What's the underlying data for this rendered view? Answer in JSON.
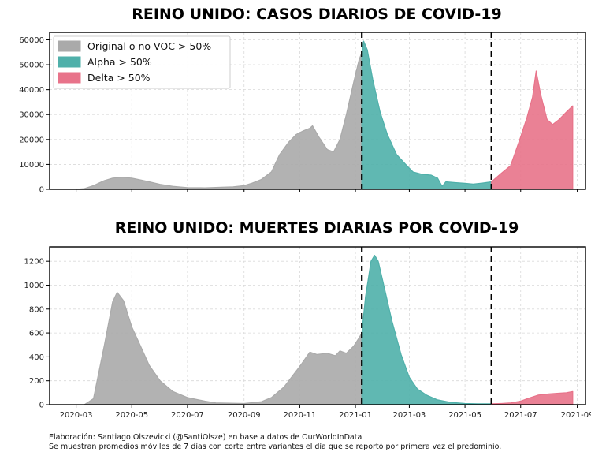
{
  "colors": {
    "original": "#aaaaaa",
    "alpha": "#4fb0aa",
    "delta": "#e8738a",
    "grid": "#d9d9d9",
    "divider": "#000000"
  },
  "footer": {
    "line1": "Elaboración: Santiago Olszevicki (@SantiOlsze) en base a datos de OurWorldInData",
    "line2": "Se muestran promedios móviles de 7 días con corte entre variantes el día que se reportó por primera vez el predominio."
  },
  "chart_data": [
    {
      "type": "area",
      "title": "REINO UNIDO: CASOS DIARIOS DE COVID-19",
      "xlabel": "",
      "ylabel": "",
      "xlim": [
        "2020-02-01",
        "2021-09-10"
      ],
      "ylim": [
        0,
        63000
      ],
      "yticks": [
        0,
        10000,
        20000,
        30000,
        40000,
        50000,
        60000
      ],
      "xticks": [],
      "grid": true,
      "legend_position": "top-left",
      "dividers": [
        "2021-01-08",
        "2021-05-30"
      ],
      "series": [
        {
          "name": "Original o no VOC > 50%",
          "color_key": "original",
          "points": [
            [
              "2020-03-01",
              0
            ],
            [
              "2020-03-10",
              300
            ],
            [
              "2020-03-20",
              1500
            ],
            [
              "2020-04-01",
              3500
            ],
            [
              "2020-04-10",
              4500
            ],
            [
              "2020-04-20",
              4800
            ],
            [
              "2020-05-01",
              4500
            ],
            [
              "2020-05-10",
              3800
            ],
            [
              "2020-05-20",
              3000
            ],
            [
              "2020-06-01",
              2000
            ],
            [
              "2020-06-15",
              1200
            ],
            [
              "2020-07-01",
              700
            ],
            [
              "2020-07-20",
              600
            ],
            [
              "2020-08-01",
              750
            ],
            [
              "2020-08-20",
              1000
            ],
            [
              "2020-09-01",
              1500
            ],
            [
              "2020-09-10",
              2500
            ],
            [
              "2020-09-20",
              4000
            ],
            [
              "2020-10-01",
              7000
            ],
            [
              "2020-10-10",
              14000
            ],
            [
              "2020-10-20",
              19000
            ],
            [
              "2020-10-28",
              22000
            ],
            [
              "2020-11-05",
              23500
            ],
            [
              "2020-11-12",
              24500
            ],
            [
              "2020-11-15",
              25500
            ],
            [
              "2020-11-22",
              21000
            ],
            [
              "2020-12-01",
              16000
            ],
            [
              "2020-12-08",
              15000
            ],
            [
              "2020-12-15",
              20000
            ],
            [
              "2020-12-22",
              30000
            ],
            [
              "2020-12-30",
              43000
            ],
            [
              "2021-01-05",
              52000
            ],
            [
              "2021-01-08",
              55000
            ]
          ]
        },
        {
          "name": "Alpha > 50%",
          "color_key": "alpha",
          "points": [
            [
              "2021-01-08",
              55000
            ],
            [
              "2021-01-10",
              59500
            ],
            [
              "2021-01-14",
              56000
            ],
            [
              "2021-01-20",
              44000
            ],
            [
              "2021-01-28",
              31000
            ],
            [
              "2021-02-05",
              22000
            ],
            [
              "2021-02-15",
              14000
            ],
            [
              "2021-02-25",
              10000
            ],
            [
              "2021-03-05",
              7000
            ],
            [
              "2021-03-15",
              6000
            ],
            [
              "2021-03-25",
              5700
            ],
            [
              "2021-04-01",
              4500
            ],
            [
              "2021-04-06",
              1200
            ],
            [
              "2021-04-10",
              3000
            ],
            [
              "2021-04-20",
              2700
            ],
            [
              "2021-05-01",
              2400
            ],
            [
              "2021-05-10",
              2100
            ],
            [
              "2021-05-20",
              2500
            ],
            [
              "2021-05-30",
              3000
            ]
          ]
        },
        {
          "name": "Delta > 50%",
          "color_key": "delta",
          "points": [
            [
              "2021-05-30",
              3000
            ],
            [
              "2021-06-10",
              6500
            ],
            [
              "2021-06-20",
              9500
            ],
            [
              "2021-06-30",
              20000
            ],
            [
              "2021-07-08",
              29000
            ],
            [
              "2021-07-14",
              37000
            ],
            [
              "2021-07-18",
              47500
            ],
            [
              "2021-07-23",
              38000
            ],
            [
              "2021-07-30",
              28000
            ],
            [
              "2021-08-05",
              26000
            ],
            [
              "2021-08-12",
              28000
            ],
            [
              "2021-08-20",
              31000
            ],
            [
              "2021-08-27",
              33500
            ]
          ]
        }
      ]
    },
    {
      "type": "area",
      "title": "REINO UNIDO: MUERTES DIARIAS POR COVID-19",
      "xlabel": "",
      "ylabel": "",
      "xlim": [
        "2020-02-01",
        "2021-09-10"
      ],
      "ylim": [
        0,
        1320
      ],
      "yticks": [
        0,
        200,
        400,
        600,
        800,
        1000,
        1200
      ],
      "xticks": [
        {
          "date": "2020-03-01",
          "label": "2020-03"
        },
        {
          "date": "2020-05-01",
          "label": "2020-05"
        },
        {
          "date": "2020-07-01",
          "label": "2020-07"
        },
        {
          "date": "2020-09-01",
          "label": "2020-09"
        },
        {
          "date": "2020-11-01",
          "label": "2020-11"
        },
        {
          "date": "2021-01-01",
          "label": "2021-01"
        },
        {
          "date": "2021-03-01",
          "label": "2021-03"
        },
        {
          "date": "2021-05-01",
          "label": "2021-05"
        },
        {
          "date": "2021-07-01",
          "label": "2021-07"
        },
        {
          "date": "2021-09-01",
          "label": "2021-09"
        }
      ],
      "grid": true,
      "dividers": [
        "2021-01-08",
        "2021-05-30"
      ],
      "series": [
        {
          "color_key": "original",
          "points": [
            [
              "2020-03-10",
              0
            ],
            [
              "2020-03-20",
              50
            ],
            [
              "2020-04-01",
              500
            ],
            [
              "2020-04-10",
              860
            ],
            [
              "2020-04-15",
              940
            ],
            [
              "2020-04-22",
              870
            ],
            [
              "2020-05-01",
              650
            ],
            [
              "2020-05-10",
              500
            ],
            [
              "2020-05-20",
              330
            ],
            [
              "2020-06-01",
              200
            ],
            [
              "2020-06-15",
              110
            ],
            [
              "2020-07-01",
              60
            ],
            [
              "2020-07-20",
              30
            ],
            [
              "2020-08-01",
              15
            ],
            [
              "2020-09-01",
              10
            ],
            [
              "2020-09-20",
              25
            ],
            [
              "2020-10-01",
              60
            ],
            [
              "2020-10-15",
              150
            ],
            [
              "2020-11-01",
              320
            ],
            [
              "2020-11-12",
              440
            ],
            [
              "2020-11-20",
              420
            ],
            [
              "2020-12-01",
              430
            ],
            [
              "2020-12-10",
              410
            ],
            [
              "2020-12-15",
              450
            ],
            [
              "2020-12-22",
              430
            ],
            [
              "2020-12-30",
              490
            ],
            [
              "2021-01-05",
              560
            ],
            [
              "2021-01-08",
              600
            ]
          ]
        },
        {
          "color_key": "alpha",
          "points": [
            [
              "2021-01-08",
              600
            ],
            [
              "2021-01-12",
              900
            ],
            [
              "2021-01-18",
              1200
            ],
            [
              "2021-01-22",
              1250
            ],
            [
              "2021-01-26",
              1200
            ],
            [
              "2021-02-01",
              1000
            ],
            [
              "2021-02-10",
              700
            ],
            [
              "2021-02-20",
              420
            ],
            [
              "2021-03-01",
              230
            ],
            [
              "2021-03-10",
              130
            ],
            [
              "2021-03-20",
              80
            ],
            [
              "2021-04-01",
              40
            ],
            [
              "2021-04-15",
              20
            ],
            [
              "2021-05-01",
              10
            ],
            [
              "2021-05-15",
              8
            ],
            [
              "2021-05-30",
              8
            ]
          ]
        },
        {
          "color_key": "delta",
          "points": [
            [
              "2021-05-30",
              8
            ],
            [
              "2021-06-10",
              10
            ],
            [
              "2021-06-20",
              15
            ],
            [
              "2021-07-01",
              30
            ],
            [
              "2021-07-10",
              55
            ],
            [
              "2021-07-20",
              80
            ],
            [
              "2021-08-01",
              90
            ],
            [
              "2021-08-10",
              95
            ],
            [
              "2021-08-20",
              100
            ],
            [
              "2021-08-27",
              110
            ]
          ]
        }
      ]
    }
  ]
}
